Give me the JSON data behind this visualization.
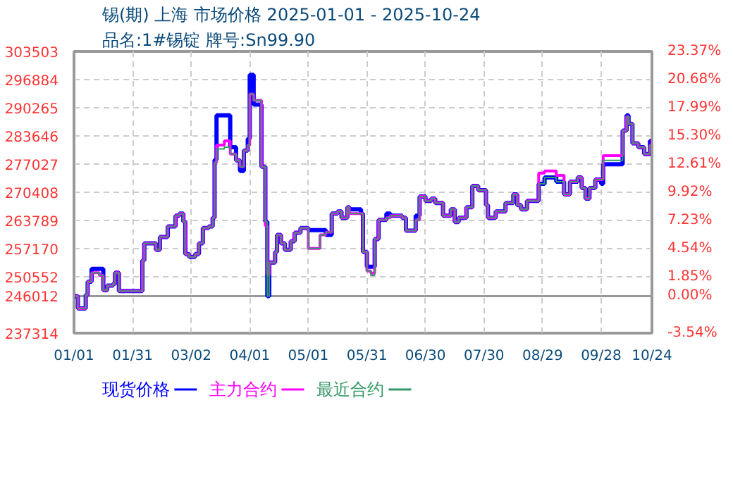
{
  "chart_data": {
    "type": "step",
    "title": "锡(期) 上海 市场价格 2025-01-01 - 2025-10-24",
    "subtitle": "品名:1#锡锭 牌号:Sn99.90",
    "x": [
      "2025-01-01",
      "2025-01-03",
      "2025-01-06",
      "2025-01-07",
      "2025-01-08",
      "2025-01-10",
      "2025-01-14",
      "2025-01-16",
      "2025-01-18",
      "2025-01-21",
      "2025-01-22",
      "2025-01-24",
      "2025-02-04",
      "2025-02-05",
      "2025-02-06",
      "2025-02-10",
      "2025-02-12",
      "2025-02-14",
      "2025-02-18",
      "2025-02-22",
      "2025-02-24",
      "2025-02-26",
      "2025-02-27",
      "2025-03-01",
      "2025-03-04",
      "2025-03-06",
      "2025-03-08",
      "2025-03-11",
      "2025-03-13",
      "2025-03-14",
      "2025-03-15",
      "2025-03-19",
      "2025-03-22",
      "2025-03-25",
      "2025-03-27",
      "2025-03-29",
      "2025-03-31",
      "2025-04-01",
      "2025-04-03",
      "2025-04-05",
      "2025-04-07",
      "2025-04-09",
      "2025-04-10",
      "2025-04-11",
      "2025-04-14",
      "2025-04-15",
      "2025-04-17",
      "2025-04-19",
      "2025-04-22",
      "2025-04-24",
      "2025-04-27",
      "2025-05-01",
      "2025-05-04",
      "2025-05-07",
      "2025-05-10",
      "2025-05-13",
      "2025-05-16",
      "2025-05-18",
      "2025-05-21",
      "2025-05-22",
      "2025-05-28",
      "2025-05-29",
      "2025-05-31",
      "2025-06-02",
      "2025-06-04",
      "2025-06-06",
      "2025-06-10",
      "2025-06-12",
      "2025-06-18",
      "2025-06-20",
      "2025-06-23",
      "2025-06-25",
      "2025-06-27",
      "2025-06-30",
      "2025-07-03",
      "2025-07-05",
      "2025-07-09",
      "2025-07-13",
      "2025-07-15",
      "2025-07-17",
      "2025-07-21",
      "2025-07-24",
      "2025-07-27",
      "2025-07-31",
      "2025-08-01",
      "2025-08-05",
      "2025-08-10",
      "2025-08-14",
      "2025-08-16",
      "2025-08-18",
      "2025-08-21",
      "2025-08-24",
      "2025-08-27",
      "2025-08-30",
      "2025-09-05",
      "2025-09-09",
      "2025-09-12",
      "2025-09-16",
      "2025-09-18",
      "2025-09-20",
      "2025-09-22",
      "2025-09-25",
      "2025-09-28",
      "2025-09-29",
      "2025-10-07",
      "2025-10-09",
      "2025-10-11",
      "2025-10-12",
      "2025-10-14",
      "2025-10-17",
      "2025-10-20",
      "2025-10-23",
      "2025-10-24"
    ],
    "series": [
      {
        "name": "现货价格",
        "color": "#0000ff",
        "values": [
          246000,
          243100,
          243100,
          246300,
          249400,
          252400,
          252400,
          247400,
          248500,
          248900,
          251500,
          247200,
          247200,
          254400,
          258400,
          258400,
          256900,
          259900,
          262400,
          264900,
          265400,
          263500,
          255900,
          255200,
          255900,
          258400,
          262000,
          262400,
          264400,
          278000,
          288500,
          288500,
          281000,
          277900,
          275400,
          280200,
          283000,
          298000,
          291000,
          291000,
          276400,
          263500,
          246000,
          253900,
          256400,
          260400,
          258400,
          256900,
          258900,
          260900,
          262000,
          261500,
          261500,
          261500,
          260400,
          265400,
          265900,
          264400,
          266900,
          266400,
          265400,
          256400,
          252900,
          252900,
          259400,
          263900,
          265400,
          264900,
          264400,
          261400,
          261400,
          264900,
          269400,
          268400,
          268900,
          267900,
          264900,
          266400,
          263400,
          264400,
          266900,
          271900,
          270900,
          267400,
          264400,
          265900,
          267900,
          269900,
          267400,
          266400,
          268400,
          268400,
          272400,
          273900,
          272900,
          269900,
          272900,
          273900,
          271400,
          268900,
          271400,
          273400,
          272400,
          277000,
          277000,
          284900,
          288500,
          286500,
          281900,
          281000,
          279400,
          282500,
          282000
        ]
      },
      {
        "name": "主力合约",
        "color": "#ff00ff",
        "values": [
          246000,
          243100,
          243100,
          246300,
          249400,
          251500,
          250900,
          247400,
          248500,
          248900,
          251500,
          247200,
          247200,
          254400,
          258400,
          258400,
          256900,
          259900,
          262400,
          264900,
          265400,
          263500,
          255900,
          255200,
          255900,
          258400,
          262000,
          262400,
          264400,
          277400,
          281500,
          282500,
          279400,
          277900,
          276400,
          280200,
          281500,
          293500,
          292000,
          292000,
          276400,
          262500,
          251000,
          253900,
          256400,
          260400,
          258400,
          256900,
          258900,
          260900,
          262000,
          257200,
          257200,
          260400,
          261000,
          265400,
          265900,
          264400,
          266900,
          265400,
          265400,
          256400,
          251900,
          251400,
          259400,
          263900,
          264400,
          264900,
          264400,
          261400,
          261400,
          263900,
          269400,
          268400,
          268900,
          267900,
          264900,
          266400,
          263400,
          264400,
          266900,
          271900,
          270900,
          267400,
          264400,
          265900,
          267900,
          269900,
          267400,
          266400,
          268400,
          268400,
          274900,
          275400,
          274400,
          269900,
          272900,
          273900,
          271400,
          268900,
          271400,
          273400,
          273400,
          279000,
          279000,
          284900,
          288200,
          286500,
          281900,
          281000,
          279400,
          281500,
          283000
        ]
      },
      {
        "name": "最近合约",
        "color": "#339966",
        "values": [
          246000,
          243100,
          243100,
          246300,
          249400,
          251500,
          250900,
          247400,
          248500,
          248900,
          251500,
          247200,
          247200,
          254400,
          258400,
          258400,
          256900,
          259900,
          262400,
          264900,
          265400,
          263500,
          255900,
          255200,
          255900,
          258400,
          262000,
          262400,
          264400,
          277400,
          280600,
          281000,
          279400,
          277900,
          276400,
          280200,
          281500,
          293500,
          292000,
          292000,
          276400,
          263500,
          246000,
          253900,
          256400,
          260400,
          258400,
          256900,
          258900,
          260900,
          262000,
          257200,
          257200,
          260400,
          261000,
          265400,
          265900,
          264400,
          266900,
          265400,
          265400,
          256400,
          251900,
          250900,
          259400,
          263900,
          264400,
          264900,
          264400,
          261400,
          261400,
          263900,
          269400,
          268400,
          268900,
          267900,
          264900,
          266400,
          263400,
          264400,
          266900,
          271900,
          270900,
          267400,
          264400,
          265900,
          267900,
          269900,
          267400,
          266400,
          268400,
          268400,
          272400,
          273900,
          272900,
          269900,
          272900,
          273900,
          271400,
          268900,
          271400,
          273400,
          273400,
          277900,
          277900,
          284900,
          288200,
          286500,
          281900,
          281000,
          279400,
          281500,
          282000
        ]
      }
    ],
    "xlim": [
      "2025-01-01",
      "2025-10-24"
    ],
    "xticks": [
      {
        "value": "2025-01-01",
        "label": "01/01"
      },
      {
        "value": "2025-01-31",
        "label": "01/31"
      },
      {
        "value": "2025-03-02",
        "label": "03/02"
      },
      {
        "value": "2025-04-01",
        "label": "04/01"
      },
      {
        "value": "2025-05-01",
        "label": "05/01"
      },
      {
        "value": "2025-05-31",
        "label": "05/31"
      },
      {
        "value": "2025-06-30",
        "label": "06/30"
      },
      {
        "value": "2025-07-30",
        "label": "07/30"
      },
      {
        "value": "2025-08-29",
        "label": "08/29"
      },
      {
        "value": "2025-09-28",
        "label": "09/28"
      },
      {
        "value": "2025-10-24",
        "label": "10/24"
      }
    ],
    "ylim": [
      237314,
      303503
    ],
    "yticks": [
      237314,
      246012,
      250552,
      257170,
      263789,
      270408,
      277027,
      283646,
      290265,
      296884,
      303503
    ],
    "y2lim": [
      -3.54,
      23.37
    ],
    "y2ticks": [
      {
        "value": -3.54,
        "label": "-3.54%"
      },
      {
        "value": 0,
        "label": "0.00%"
      },
      {
        "value": 1.85,
        "label": "1.85%"
      },
      {
        "value": 4.54,
        "label": "4.54%"
      },
      {
        "value": 7.23,
        "label": "7.23%"
      },
      {
        "value": 9.92,
        "label": "9.92%"
      },
      {
        "value": 12.61,
        "label": "12.61%"
      },
      {
        "value": 15.3,
        "label": "15.30%"
      },
      {
        "value": 17.99,
        "label": "17.99%"
      },
      {
        "value": 20.68,
        "label": "20.68%"
      },
      {
        "value": 23.37,
        "label": "23.37%"
      }
    ],
    "ref_lines": [
      {
        "axis": "y",
        "value": 246012,
        "color": "#999999"
      }
    ],
    "grid": true,
    "legend": "bottom",
    "line_style": "solid",
    "marker": "none"
  }
}
